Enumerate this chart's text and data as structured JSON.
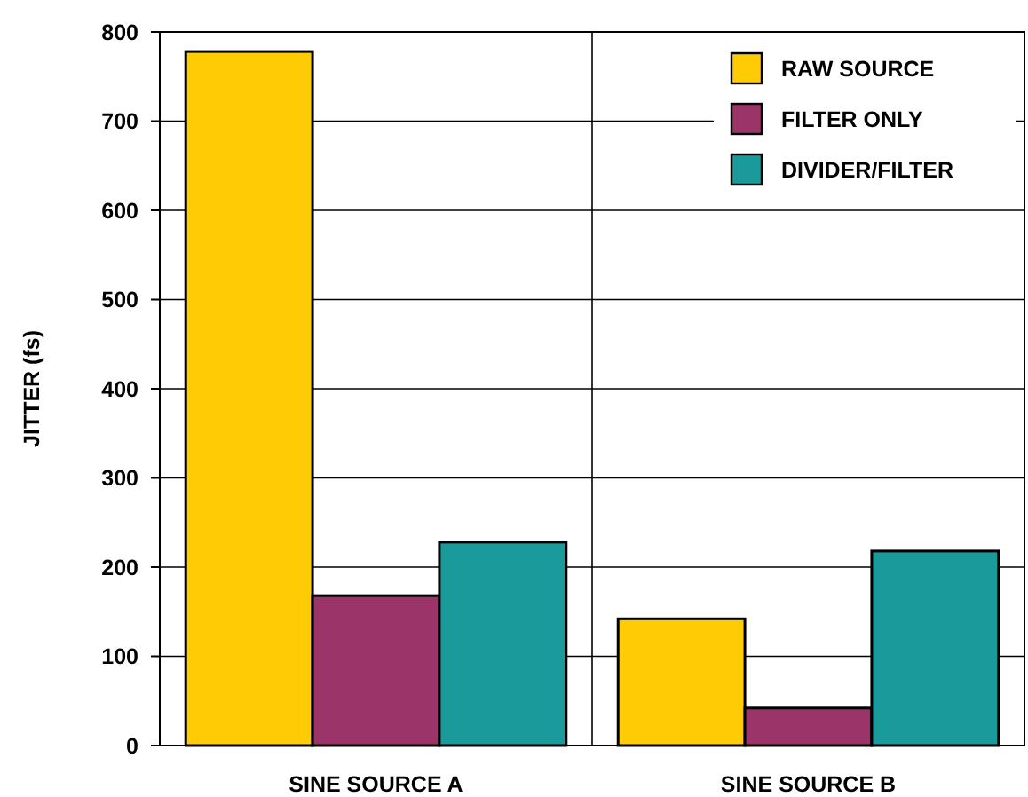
{
  "chart_data": {
    "type": "bar",
    "ylabel": "JITTER (fs)",
    "categories": [
      "SINE SOURCE A",
      "SINE SOURCE B"
    ],
    "series": [
      {
        "name": "RAW SOURCE",
        "color": "#ffcb05",
        "values": [
          778,
          142
        ]
      },
      {
        "name": "FILTER ONLY",
        "color": "#9b3468",
        "values": [
          168,
          42
        ]
      },
      {
        "name": "DIVIDER/FILTER",
        "color": "#1a9a9a",
        "values": [
          228,
          218
        ]
      }
    ],
    "ylim": [
      0,
      800
    ],
    "yticks": [
      0,
      100,
      200,
      300,
      400,
      500,
      600,
      700,
      800
    ],
    "grid": true,
    "legend": "top right"
  }
}
